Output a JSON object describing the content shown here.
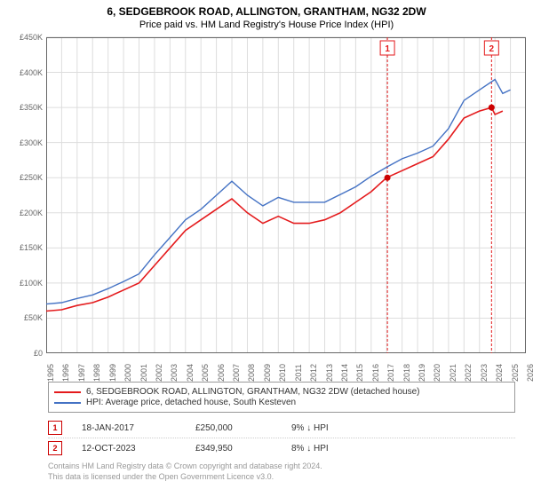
{
  "title": "6, SEDGEBROOK ROAD, ALLINGTON, GRANTHAM, NG32 2DW",
  "subtitle": "Price paid vs. HM Land Registry's House Price Index (HPI)",
  "chart": {
    "type": "line",
    "xlim": [
      1995,
      2026
    ],
    "ylim": [
      0,
      450000
    ],
    "ytick_step": 50000,
    "ytick_prefix": "£",
    "ytick_suffix": "K",
    "xtick_step": 1,
    "background_color": "#ffffff",
    "grid_color": "#dddddd",
    "axis_color": "#666666",
    "series": [
      {
        "name": "6, SEDGEBROOK ROAD, ALLINGTON, GRANTHAM, NG32 2DW (detached house)",
        "color": "#e41a1c",
        "line_width": 1.6,
        "data": [
          [
            1995,
            60000
          ],
          [
            1996,
            62000
          ],
          [
            1997,
            68000
          ],
          [
            1998,
            72000
          ],
          [
            1999,
            80000
          ],
          [
            2000,
            90000
          ],
          [
            2001,
            100000
          ],
          [
            2002,
            125000
          ],
          [
            2003,
            150000
          ],
          [
            2004,
            175000
          ],
          [
            2005,
            190000
          ],
          [
            2006,
            205000
          ],
          [
            2007,
            220000
          ],
          [
            2008,
            200000
          ],
          [
            2009,
            185000
          ],
          [
            2010,
            195000
          ],
          [
            2011,
            185000
          ],
          [
            2012,
            185000
          ],
          [
            2013,
            190000
          ],
          [
            2014,
            200000
          ],
          [
            2015,
            215000
          ],
          [
            2016,
            230000
          ],
          [
            2017,
            250000
          ],
          [
            2018,
            260000
          ],
          [
            2019,
            270000
          ],
          [
            2020,
            280000
          ],
          [
            2021,
            305000
          ],
          [
            2022,
            335000
          ],
          [
            2023,
            345000
          ],
          [
            2023.78,
            349950
          ],
          [
            2024,
            340000
          ],
          [
            2024.5,
            345000
          ]
        ]
      },
      {
        "name": "HPI: Average price, detached house, South Kesteven",
        "color": "#4472c4",
        "line_width": 1.4,
        "data": [
          [
            1995,
            70000
          ],
          [
            1996,
            72000
          ],
          [
            1997,
            78000
          ],
          [
            1998,
            83000
          ],
          [
            1999,
            92000
          ],
          [
            2000,
            102000
          ],
          [
            2001,
            113000
          ],
          [
            2002,
            140000
          ],
          [
            2003,
            165000
          ],
          [
            2004,
            190000
          ],
          [
            2005,
            205000
          ],
          [
            2006,
            225000
          ],
          [
            2007,
            245000
          ],
          [
            2008,
            225000
          ],
          [
            2009,
            210000
          ],
          [
            2010,
            222000
          ],
          [
            2011,
            215000
          ],
          [
            2012,
            215000
          ],
          [
            2013,
            215000
          ],
          [
            2014,
            226000
          ],
          [
            2015,
            237000
          ],
          [
            2016,
            252000
          ],
          [
            2017,
            265000
          ],
          [
            2018,
            277000
          ],
          [
            2019,
            285000
          ],
          [
            2020,
            295000
          ],
          [
            2021,
            320000
          ],
          [
            2022,
            360000
          ],
          [
            2023,
            375000
          ],
          [
            2024,
            390000
          ],
          [
            2024.5,
            370000
          ],
          [
            2025,
            375000
          ]
        ]
      }
    ],
    "markers": [
      {
        "label": "1",
        "x": 2017.05,
        "y": 250000,
        "box_color": "#e41a1c",
        "line_dash": "3,2"
      },
      {
        "label": "2",
        "x": 2023.78,
        "y": 349950,
        "box_color": "#e41a1c",
        "line_dash": "3,2"
      }
    ],
    "marker_dot_color": "#cc0000"
  },
  "legend": [
    {
      "color": "#e41a1c",
      "label": "6, SEDGEBROOK ROAD, ALLINGTON, GRANTHAM, NG32 2DW (detached house)"
    },
    {
      "color": "#4472c4",
      "label": "HPI: Average price, detached house, South Kesteven"
    }
  ],
  "marker_rows": [
    {
      "num": "1",
      "date": "18-JAN-2017",
      "price": "£250,000",
      "delta": "9% ↓ HPI"
    },
    {
      "num": "2",
      "date": "12-OCT-2023",
      "price": "£349,950",
      "delta": "8% ↓ HPI"
    }
  ],
  "footer_line1": "Contains HM Land Registry data © Crown copyright and database right 2024.",
  "footer_line2": "This data is licensed under the Open Government Licence v3.0."
}
